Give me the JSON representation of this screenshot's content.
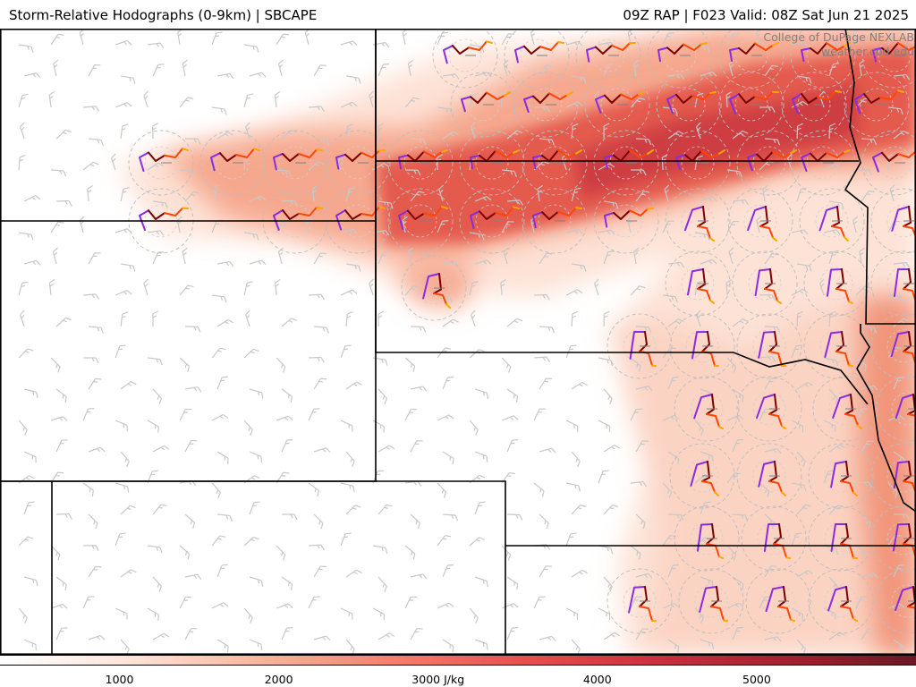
{
  "header": {
    "title_left": "Storm-Relative Hodographs (0-9km) | SBCAPE",
    "title_right": "09Z RAP | F023 Valid: 08Z Sat Jun 21 2025"
  },
  "credit": {
    "line1": "College of DuPage NEXLAB",
    "line2": "weather.cod.edu"
  },
  "colorbar": {
    "ticks": [
      {
        "value": 1000,
        "label": "1000"
      },
      {
        "value": 2000,
        "label": "2000"
      },
      {
        "value": 3000,
        "label": "3000 J/kg"
      },
      {
        "value": 4000,
        "label": "4000"
      },
      {
        "value": 5000,
        "label": "5000"
      }
    ],
    "range": [
      250,
      6000
    ],
    "colors": [
      "#ffffff",
      "#fde4d8",
      "#f9b49c",
      "#f3816a",
      "#e4524c",
      "#c8323f",
      "#a1222f",
      "#6e1626"
    ]
  },
  "legend_colors": {
    "hodo_0_1km": "#8a2be2",
    "hodo_1_3km": "#7a0000",
    "hodo_3_6km": "#ff4500",
    "hodo_6_9km": "#ffa500",
    "barb": "#c0c0c0",
    "border": "#000000"
  }
}
